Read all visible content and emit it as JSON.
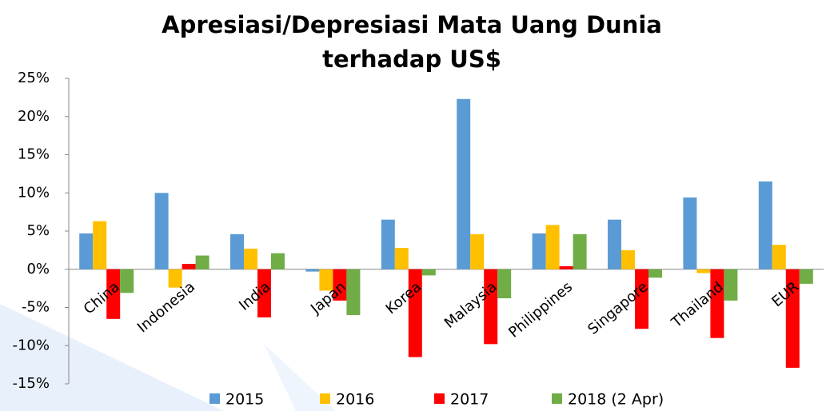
{
  "chart_data": {
    "type": "bar",
    "title": [
      "Apresiasi/Depresiasi Mata Uang Dunia",
      "terhadap US$"
    ],
    "categories": [
      "China",
      "Indonesia",
      "India",
      "Japan",
      "Korea",
      "Malaysia",
      "Philippines",
      "Singapore",
      "Thailand",
      "EUR"
    ],
    "series": [
      {
        "name": "2015",
        "color": "#5b9bd5",
        "values": [
          4.7,
          10.0,
          4.6,
          -0.3,
          6.5,
          22.3,
          4.7,
          6.5,
          9.4,
          11.5
        ]
      },
      {
        "name": "2016",
        "color": "#ffc000",
        "values": [
          6.3,
          -2.4,
          2.7,
          -2.8,
          2.8,
          4.6,
          5.8,
          2.5,
          -0.5,
          3.2
        ]
      },
      {
        "name": "2017",
        "color": "#ff0000",
        "values": [
          -6.5,
          0.7,
          -6.3,
          -4.1,
          -11.5,
          -9.8,
          0.4,
          -7.8,
          -9.0,
          -12.9
        ]
      },
      {
        "name": "2018 (2 Apr)",
        "color": "#70ad47",
        "values": [
          -3.1,
          1.8,
          2.1,
          -6.0,
          -0.8,
          -3.8,
          4.6,
          -1.1,
          -4.1,
          -1.9
        ]
      }
    ],
    "ylim": [
      -15,
      25
    ],
    "yticks": [
      {
        "value": -15,
        "label": "-15%"
      },
      {
        "value": -10,
        "label": "-10%"
      },
      {
        "value": -5,
        "label": "-5%"
      },
      {
        "value": 0,
        "label": "0%"
      },
      {
        "value": 5,
        "label": "5%"
      },
      {
        "value": 10,
        "label": "10%"
      },
      {
        "value": 15,
        "label": "15%"
      },
      {
        "value": 20,
        "label": "20%"
      },
      {
        "value": 25,
        "label": "25%"
      }
    ],
    "legend": "bottom"
  }
}
